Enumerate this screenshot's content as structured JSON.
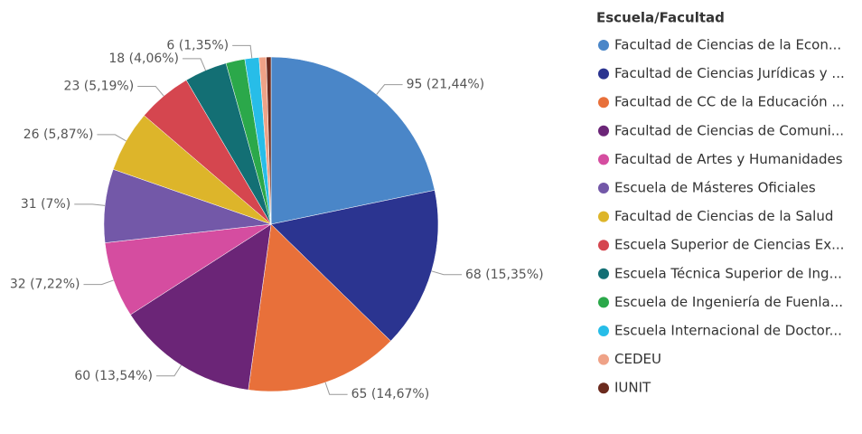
{
  "chart_data": {
    "type": "pie",
    "legend_title": "Escuela/Facultad",
    "categories": [
      "Facultad de Ciencias de la Econ...",
      "Facultad de Ciencias Jurídicas y ...",
      "Facultad de CC de la Educación ...",
      "Facultad de Ciencias de Comuni...",
      "Facultad de Artes y Humanidades",
      "Escuela de Másteres Oficiales",
      "Facultad de Ciencias de la Salud",
      "Escuela Superior de Ciencias Ex...",
      "Escuela Técnica Superior de Ing...",
      "Escuela de Ingeniería de Fuenla...",
      "Escuela Internacional de Doctor...",
      "CEDEU",
      "IUNIT"
    ],
    "values": [
      95,
      68,
      65,
      60,
      32,
      31,
      26,
      23,
      18,
      8,
      6,
      3,
      2
    ],
    "value_labels": [
      "95 (21,44%)",
      "68 (15,35%)",
      "65 (14,67%)",
      "60 (13,54%)",
      "32 (7,22%)",
      "31 (7%)",
      "26 (5,87%)",
      "23 (5,19%)",
      "18 (4,06%)",
      null,
      "6 (1,35%)",
      null,
      null
    ],
    "colors": [
      "#4a86c8",
      "#2b3490",
      "#e8703a",
      "#6b2577",
      "#d54da0",
      "#7358a8",
      "#ddb52a",
      "#d5464f",
      "#136f74",
      "#2ba84a",
      "#27bde8",
      "#efa287",
      "#6b2a1e"
    ],
    "legend": "right"
  }
}
